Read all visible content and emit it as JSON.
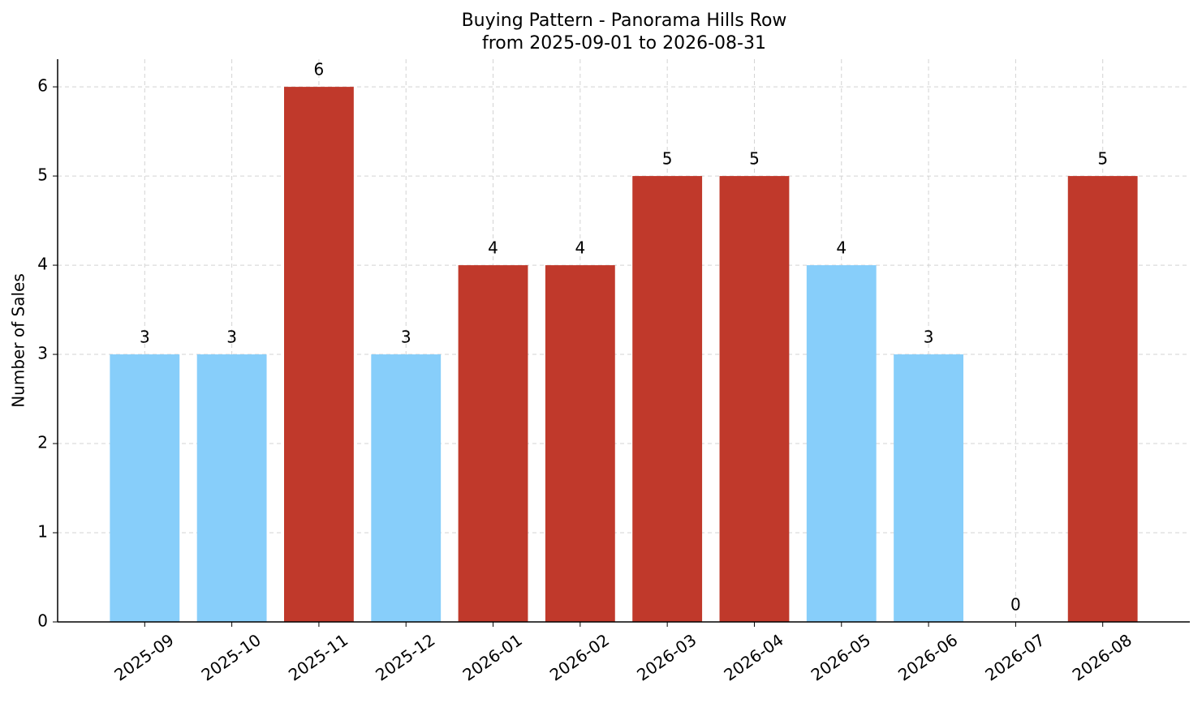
{
  "chart_data": {
    "type": "bar",
    "title": "Buying Pattern - Panorama Hills Row",
    "subtitle": "from 2025-09-01 to 2026-08-31",
    "y_label": "Number of Sales",
    "categories": [
      "2025-09",
      "2025-10",
      "2025-11",
      "2025-12",
      "2026-01",
      "2026-02",
      "2026-03",
      "2026-04",
      "2026-05",
      "2026-06",
      "2026-07",
      "2026-08"
    ],
    "values": [
      3,
      3,
      6,
      3,
      4,
      4,
      5,
      5,
      4,
      3,
      0,
      5
    ],
    "colors": [
      "#87cefa",
      "#87cefa",
      "#c0392b",
      "#87cefa",
      "#c0392b",
      "#c0392b",
      "#c0392b",
      "#c0392b",
      "#87cefa",
      "#87cefa",
      "#87cefa",
      "#c0392b"
    ],
    "ylim": [
      0,
      6.31
    ],
    "yticks": [
      0,
      1,
      2,
      3,
      4,
      5,
      6
    ],
    "grid": true
  }
}
